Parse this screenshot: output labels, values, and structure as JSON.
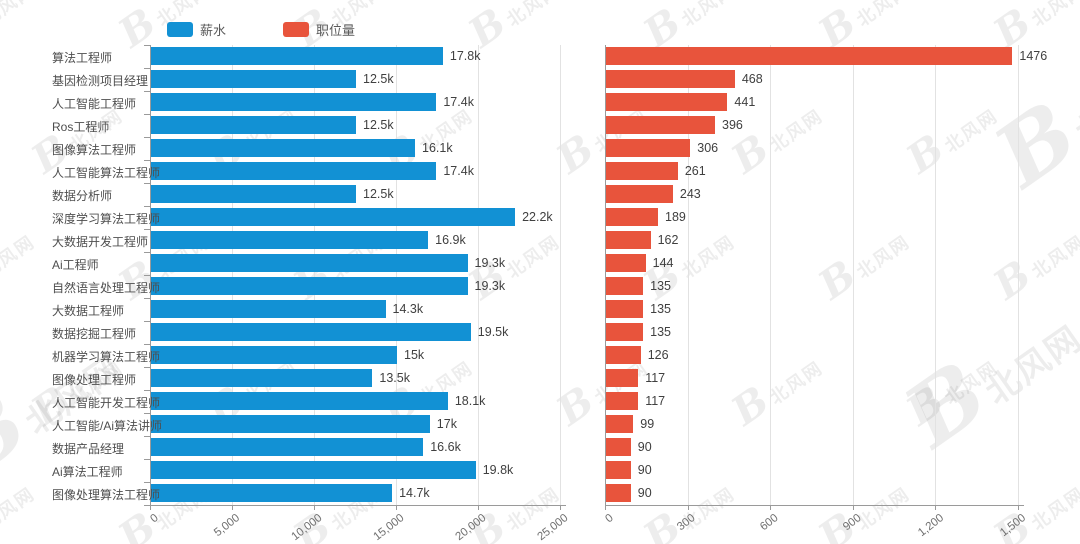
{
  "watermark": {
    "logo_letter": "B",
    "text": "北风网"
  },
  "legend": {
    "items": [
      {
        "label": "薪水",
        "color": "#1291d4"
      },
      {
        "label": "职位量",
        "color": "#e8543c"
      }
    ]
  },
  "chart_data": [
    {
      "type": "bar",
      "orientation": "horizontal",
      "name": "薪水",
      "color": "#1291d4",
      "categories": [
        "算法工程师",
        "基因检测项目经理",
        "人工智能工程师",
        "Ros工程师",
        "图像算法工程师",
        "人工智能算法工程师",
        "数据分析师",
        "深度学习算法工程师",
        "大数据开发工程师",
        "Ai工程师",
        "自然语言处理工程师",
        "大数据工程师",
        "数据挖掘工程师",
        "机器学习算法工程师",
        "图像处理工程师",
        "人工智能开发工程师",
        "人工智能/Ai算法讲师",
        "数据产品经理",
        "Ai算法工程师",
        "图像处理算法工程师"
      ],
      "values": [
        17800,
        12500,
        17400,
        12500,
        16100,
        17400,
        12500,
        22200,
        16900,
        19300,
        19300,
        14300,
        19500,
        15000,
        13500,
        18100,
        17000,
        16600,
        19800,
        14700
      ],
      "value_labels": [
        "17.8k",
        "12.5k",
        "17.4k",
        "12.5k",
        "16.1k",
        "17.4k",
        "12.5k",
        "22.2k",
        "16.9k",
        "19.3k",
        "19.3k",
        "14.3k",
        "19.5k",
        "15k",
        "13.5k",
        "18.1k",
        "17k",
        "16.6k",
        "19.8k",
        "14.7k"
      ],
      "xlim": [
        0,
        25000
      ],
      "xtick_values": [
        0,
        5000,
        10000,
        15000,
        20000,
        25000
      ],
      "xtick_labels": [
        "0",
        "5,000",
        "10,000",
        "15,000",
        "20,000",
        "25,000"
      ],
      "grid": true,
      "legend_position": "top"
    },
    {
      "type": "bar",
      "orientation": "horizontal",
      "name": "职位量",
      "color": "#e8543c",
      "categories": [
        "算法工程师",
        "基因检测项目经理",
        "人工智能工程师",
        "Ros工程师",
        "图像算法工程师",
        "人工智能算法工程师",
        "数据分析师",
        "深度学习算法工程师",
        "大数据开发工程师",
        "Ai工程师",
        "自然语言处理工程师",
        "大数据工程师",
        "数据挖掘工程师",
        "机器学习算法工程师",
        "图像处理工程师",
        "人工智能开发工程师",
        "人工智能/Ai算法讲师",
        "数据产品经理",
        "Ai算法工程师",
        "图像处理算法工程师"
      ],
      "values": [
        1476,
        468,
        441,
        396,
        306,
        261,
        243,
        189,
        162,
        144,
        135,
        135,
        135,
        126,
        117,
        117,
        99,
        90,
        90,
        90
      ],
      "value_labels": [
        "1476",
        "468",
        "441",
        "396",
        "306",
        "261",
        "243",
        "189",
        "162",
        "144",
        "135",
        "135",
        "135",
        "126",
        "117",
        "117",
        "99",
        "90",
        "90",
        "90"
      ],
      "xlim": [
        0,
        1500
      ],
      "xtick_values": [
        0,
        300,
        600,
        900,
        1200,
        1500
      ],
      "xtick_labels": [
        "0",
        "300",
        "600",
        "900",
        "1,200",
        "1,500"
      ],
      "grid": true,
      "legend_position": "top"
    }
  ]
}
